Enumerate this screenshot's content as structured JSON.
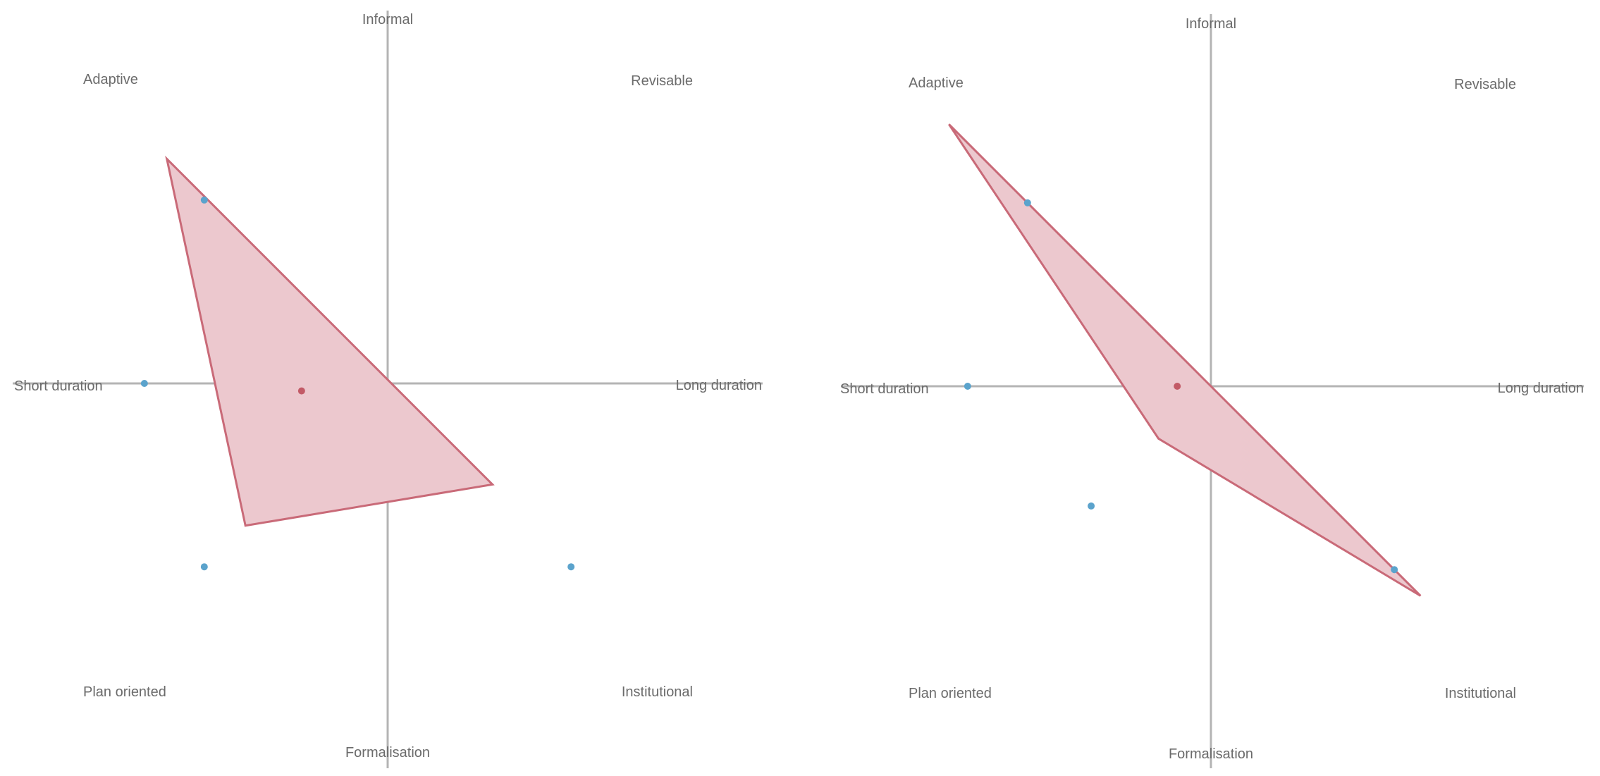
{
  "colors": {
    "axis": "#b4b4b4",
    "label": "#6b6b6b",
    "polygon_fill": "#ecc8ce",
    "polygon_stroke": "#c96a78",
    "point_blue": "#5ba3cc",
    "point_red": "#c25a66"
  },
  "panels": [
    {
      "labels": {
        "top": "Informal",
        "bottom": "Formalisation",
        "left": "Short duration",
        "right": "Long duration",
        "top_left": "Adaptive",
        "top_right": "Revisable",
        "bottom_left": "Plan oriented",
        "bottom_right": "Institutional"
      },
      "axes": [
        "informal",
        "revisable",
        "long_duration",
        "institutional",
        "formalisation",
        "plan_oriented",
        "short_duration",
        "adaptive"
      ],
      "polygon": [
        [
          -0.59,
          0.6
        ],
        [
          0.28,
          -0.27
        ],
        [
          -0.38,
          -0.38
        ]
      ],
      "blue_points": [
        [
          -0.49,
          0.49
        ],
        [
          -0.65,
          0.0
        ],
        [
          -0.49,
          -0.49
        ],
        [
          0.49,
          -0.49
        ]
      ],
      "red_point": [
        -0.23,
        -0.02
      ]
    },
    {
      "labels": {
        "top": "Informal",
        "bottom": "Formalisation",
        "left": "Short duration",
        "right": "Long duration",
        "top_left": "Adaptive",
        "top_right": "Revisable",
        "bottom_left": "Plan oriented",
        "bottom_right": "Institutional"
      },
      "axes": [
        "informal",
        "revisable",
        "long_duration",
        "institutional",
        "formalisation",
        "plan_oriented",
        "short_duration",
        "adaptive"
      ],
      "polygon": [
        [
          -0.7,
          0.7
        ],
        [
          0.0,
          0.0
        ],
        [
          0.56,
          -0.56
        ],
        [
          -0.14,
          -0.14
        ]
      ],
      "blue_points": [
        [
          -0.49,
          0.49
        ],
        [
          -0.65,
          0.0
        ],
        [
          -0.32,
          -0.32
        ],
        [
          0.49,
          -0.49
        ]
      ],
      "red_point": [
        -0.09,
        0.0
      ]
    }
  ]
}
